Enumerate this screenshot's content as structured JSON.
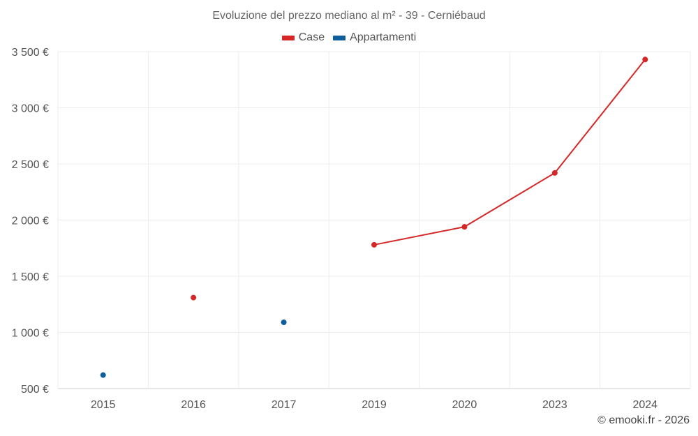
{
  "chart_data": {
    "type": "line",
    "title": "Evoluzione del prezzo mediano al m² - 39 - Cerniébaud",
    "categories": [
      "2015",
      "2016",
      "2017",
      "2019",
      "2020",
      "2023",
      "2024"
    ],
    "ylim": [
      500,
      3500
    ],
    "yticks": [
      500,
      1000,
      1500,
      2000,
      2500,
      3000,
      3500
    ],
    "ytick_labels": [
      "500 €",
      "1 000 €",
      "1 500 €",
      "2 000 €",
      "2 500 €",
      "3 000 €",
      "3 500 €"
    ],
    "xlabel": "",
    "ylabel": "",
    "grid": true,
    "legend_position": "top-center",
    "series": [
      {
        "name": "Case",
        "color": "#d62728",
        "values": [
          null,
          1310,
          null,
          1780,
          1940,
          2420,
          3430
        ]
      },
      {
        "name": "Appartamenti",
        "color": "#0e5f9c",
        "values": [
          620,
          null,
          1090,
          null,
          null,
          null,
          null
        ]
      }
    ]
  },
  "footer": {
    "copyright": "© emooki.fr - 2026"
  }
}
